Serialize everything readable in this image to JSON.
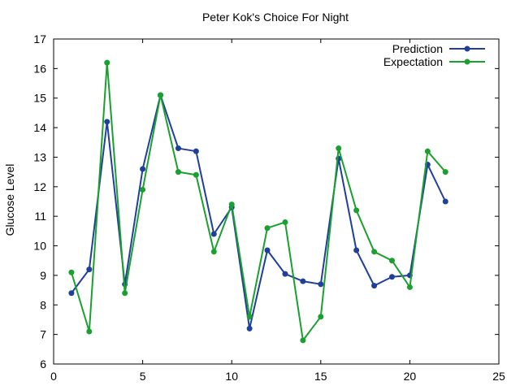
{
  "chart_data": {
    "type": "line",
    "title": "Peter Kok's Choice For Night",
    "xlabel": "",
    "ylabel": "Glucose Level",
    "xlim": [
      0,
      25
    ],
    "ylim": [
      6,
      17
    ],
    "xticks": [
      0,
      5,
      10,
      15,
      20,
      25
    ],
    "yticks": [
      6,
      7,
      8,
      9,
      10,
      11,
      12,
      13,
      14,
      15,
      16,
      17
    ],
    "grid": false,
    "legend": "top-right",
    "x": [
      1,
      2,
      3,
      4,
      5,
      6,
      7,
      8,
      9,
      10,
      11,
      12,
      13,
      14,
      15,
      16,
      17,
      18,
      19,
      20,
      21,
      22
    ],
    "series": [
      {
        "name": "Prediction",
        "color": "#1f3f9a",
        "values": [
          8.4,
          9.2,
          14.2,
          8.7,
          12.6,
          15.1,
          13.3,
          13.2,
          10.4,
          11.3,
          7.2,
          9.85,
          9.05,
          8.8,
          8.7,
          12.95,
          9.85,
          8.65,
          8.95,
          9.0,
          12.75,
          11.5
        ]
      },
      {
        "name": "Expectation",
        "color": "#1aa02e",
        "values": [
          9.1,
          7.1,
          16.2,
          8.4,
          11.9,
          15.1,
          12.5,
          12.4,
          9.8,
          11.4,
          7.6,
          10.6,
          10.8,
          6.8,
          7.6,
          13.3,
          11.2,
          9.8,
          9.5,
          8.6,
          13.2,
          12.5
        ]
      }
    ]
  }
}
